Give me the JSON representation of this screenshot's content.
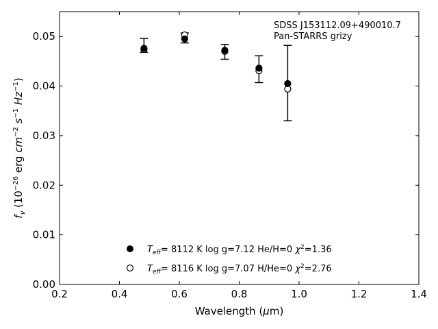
{
  "chart_data": {
    "type": "scatter",
    "annotation": [
      "SDSS J153112.09+490010.7",
      "Pan-STARRS grizy"
    ],
    "xlabel": "Wavelength (μm)",
    "ylabel": "f_ν (10^-26 erg cm^-2 s^-1 Hz^-1)",
    "xlim": [
      0.2,
      1.4
    ],
    "ylim": [
      0.0,
      0.055
    ],
    "xticks": [
      0.2,
      0.4,
      0.6,
      0.8,
      1.0,
      1.2,
      1.4
    ],
    "xtick_labels": [
      "0.2",
      "0.4",
      "0.6",
      "0.8",
      "1.0",
      "1.2",
      "1.4"
    ],
    "yticks": [
      0.0,
      0.01,
      0.02,
      0.03,
      0.04,
      0.05
    ],
    "ytick_labels": [
      "0.00",
      "0.01",
      "0.02",
      "0.03",
      "0.04",
      "0.05"
    ],
    "grid": false,
    "legend_placement": "lower-center",
    "observed": {
      "x": [
        0.482,
        0.618,
        0.752,
        0.866,
        0.962
      ],
      "y": [
        0.0482,
        0.0497,
        0.0469,
        0.0434,
        0.0406
      ],
      "yerr": [
        0.0014,
        0.001,
        0.0015,
        0.0027,
        0.0076
      ]
    },
    "series": [
      {
        "name": "Teff= 8112 K log g=7.12 He/H=0 χ2=1.36",
        "label": {
          "teff": "8112 K",
          "logg": "log g=7.12",
          "comp": "He/H=0",
          "chi2": "=1.36"
        },
        "marker": "filled",
        "x": [
          0.482,
          0.618,
          0.752,
          0.866,
          0.962
        ],
        "y": [
          0.0476,
          0.0495,
          0.0472,
          0.0436,
          0.0405
        ]
      },
      {
        "name": "Teff= 8116 K log g=7.07 H/He=0 χ2=2.76",
        "label": {
          "teff": "8116 K",
          "logg": "log g=7.07",
          "comp": "H/He=0",
          "chi2": "=2.76"
        },
        "marker": "open",
        "x": [
          0.482,
          0.618,
          0.752,
          0.866,
          0.962
        ],
        "y": [
          0.0474,
          0.0503,
          0.047,
          0.0431,
          0.0394
        ]
      }
    ]
  }
}
